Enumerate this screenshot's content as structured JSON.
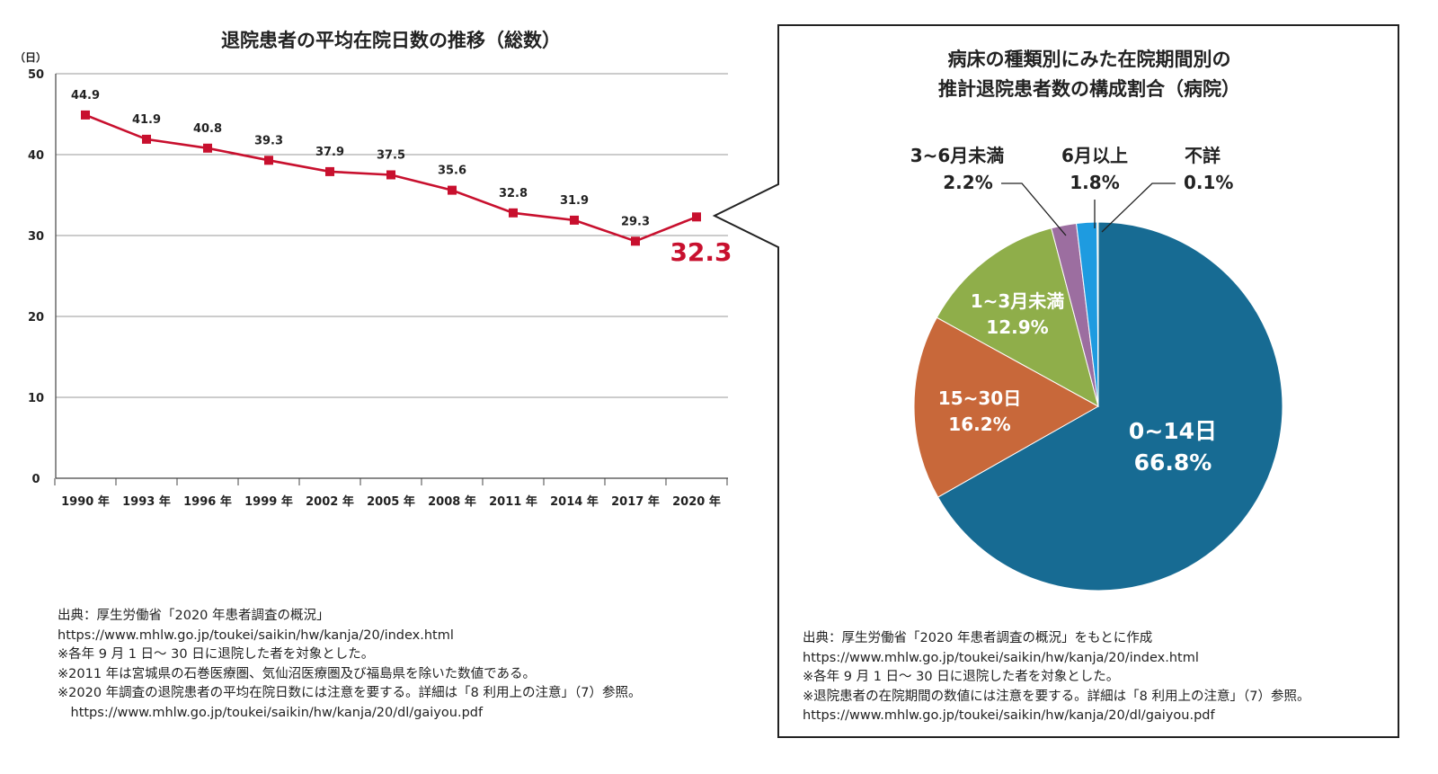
{
  "line_chart": {
    "title": "退院患者の平均在院日数の推移（総数）",
    "yunit": "（日）",
    "y_ticks": [
      "50",
      "40",
      "30",
      "20",
      "10",
      "0"
    ],
    "highlight_label": "32.3"
  },
  "pie_chart": {
    "title_line1": "病床の種類別にみた在院期間別の",
    "title_line2": "推計退院患者数の構成割合（病院）"
  },
  "notes_left": [
    "出典：厚生労働省「2020 年患者調査の概況」",
    "https://www.mhlw.go.jp/toukei/saikin/hw/kanja/20/index.html",
    "※各年 9 月 1 日～ 30 日に退院した者を対象とした。",
    "※2011 年は宮城県の石巻医療圏、気仙沼医療圏及び福島県を除いた数値である。",
    "※2020 年調査の退院患者の平均在院日数には注意を要する。詳細は「8 利用上の注意」（7）参照。",
    "　https://www.mhlw.go.jp/toukei/saikin/hw/kanja/20/dl/gaiyou.pdf"
  ],
  "notes_right": [
    "出典：厚生労働省「2020 年患者調査の概況」をもとに作成",
    "https://www.mhlw.go.jp/toukei/saikin/hw/kanja/20/index.html",
    "※各年 9 月 1 日～ 30 日に退院した者を対象とした。",
    "※退院患者の在院期間の数値には注意を要する。詳細は「8 利用上の注意」（7）参照。",
    "https://www.mhlw.go.jp/toukei/saikin/hw/kanja/20/dl/gaiyou.pdf"
  ],
  "colors": {
    "line": "#c8102e",
    "grid": "#999999",
    "slice_0_14": "#176b93",
    "slice_15_30": "#c8683a",
    "slice_1_3m": "#8fae4a",
    "slice_3_6m": "#9c6ea0",
    "slice_6m": "#1e9be0",
    "slice_unknown": "#c9b98a"
  },
  "chart_data": [
    {
      "type": "line",
      "title": "退院患者の平均在院日数の推移（総数）",
      "xlabel": "",
      "ylabel": "（日）",
      "ylim": [
        0,
        50
      ],
      "yticks": [
        0,
        10,
        20,
        30,
        40,
        50
      ],
      "grid": true,
      "categories": [
        "1990 年",
        "1993 年",
        "1996 年",
        "1999 年",
        "2002 年",
        "2005 年",
        "2008 年",
        "2011 年",
        "2014 年",
        "2017 年",
        "2020 年"
      ],
      "values": [
        44.9,
        41.9,
        40.8,
        39.3,
        37.9,
        37.5,
        35.6,
        32.8,
        31.9,
        29.3,
        32.3
      ],
      "labels": [
        "44.9",
        "41.9",
        "40.8",
        "39.3",
        "37.9",
        "37.5",
        "35.6",
        "32.8",
        "31.9",
        "29.3",
        "32.3"
      ]
    },
    {
      "type": "pie",
      "title": "病床の種類別にみた在院期間別の推計退院患者数の構成割合（病院）",
      "slices": [
        {
          "name": "0~14日",
          "value": 66.8,
          "label": "66.8%",
          "color_key": "slice_0_14",
          "label_pos": "inside"
        },
        {
          "name": "15~30日",
          "value": 16.2,
          "label": "16.2%",
          "color_key": "slice_15_30",
          "label_pos": "inside"
        },
        {
          "name": "1~3月未満",
          "value": 12.9,
          "label": "12.9%",
          "color_key": "slice_1_3m",
          "label_pos": "inside"
        },
        {
          "name": "3~6月未満",
          "value": 2.2,
          "label": "2.2%",
          "color_key": "slice_3_6m",
          "label_pos": "outside"
        },
        {
          "name": "6月以上",
          "value": 1.8,
          "label": "1.8%",
          "color_key": "slice_6m",
          "label_pos": "outside"
        },
        {
          "name": "不詳",
          "value": 0.1,
          "label": "0.1%",
          "color_key": "slice_unknown",
          "label_pos": "outside"
        }
      ]
    }
  ]
}
